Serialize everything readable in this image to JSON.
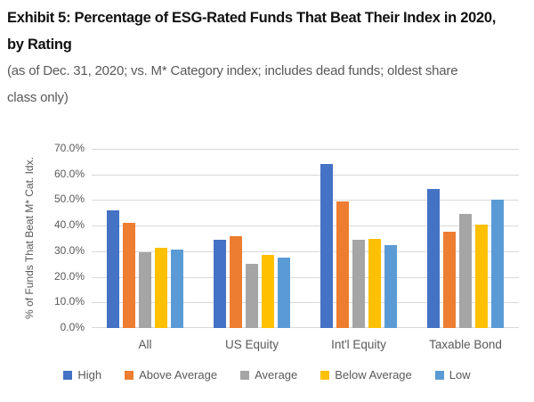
{
  "exhibit": {
    "title_lines": [
      "Exhibit 5: Percentage of ESG-Rated Funds That Beat Their Index in 2020,",
      "by Rating"
    ],
    "subtitle_lines": [
      "(as of Dec. 31, 2020; vs. M* Category index; includes dead funds; oldest share",
      "class only)"
    ]
  },
  "chart_data": {
    "type": "bar",
    "title": "Exhibit 5: Percentage of ESG-Rated Funds That Beat Their Index in 2020, by Rating",
    "subtitle": "(as of Dec. 31, 2020; vs. M* Category index; includes dead funds; oldest share class only)",
    "xlabel": "",
    "ylabel": "% of Funds That Beat M* Cat. Idx.",
    "ylim": [
      0,
      70
    ],
    "grid": true,
    "legend_position": "bottom",
    "yticks": [
      "0.0%",
      "10.0%",
      "20.0%",
      "30.0%",
      "40.0%",
      "50.0%",
      "60.0%",
      "70.0%"
    ],
    "categories": [
      "All",
      "US Equity",
      "Int'l Equity",
      "Taxable Bond"
    ],
    "series": [
      {
        "name": "High",
        "color": "#4472C4",
        "values": [
          46.0,
          34.5,
          64.0,
          54.5
        ]
      },
      {
        "name": "Above Average",
        "color": "#ED7D31",
        "values": [
          41.0,
          36.0,
          49.5,
          37.5
        ]
      },
      {
        "name": "Average",
        "color": "#A5A5A5",
        "values": [
          29.5,
          25.0,
          34.5,
          44.5
        ]
      },
      {
        "name": "Below Average",
        "color": "#FFC000",
        "values": [
          31.5,
          28.5,
          35.0,
          40.5
        ]
      },
      {
        "name": "Low",
        "color": "#5B9BD5",
        "values": [
          30.5,
          27.5,
          32.5,
          50.0
        ]
      }
    ]
  },
  "style_colors": {
    "title_text": "#111111",
    "body_text": "#595959",
    "gridline": "#d9d9d9",
    "background": "#ffffff"
  }
}
